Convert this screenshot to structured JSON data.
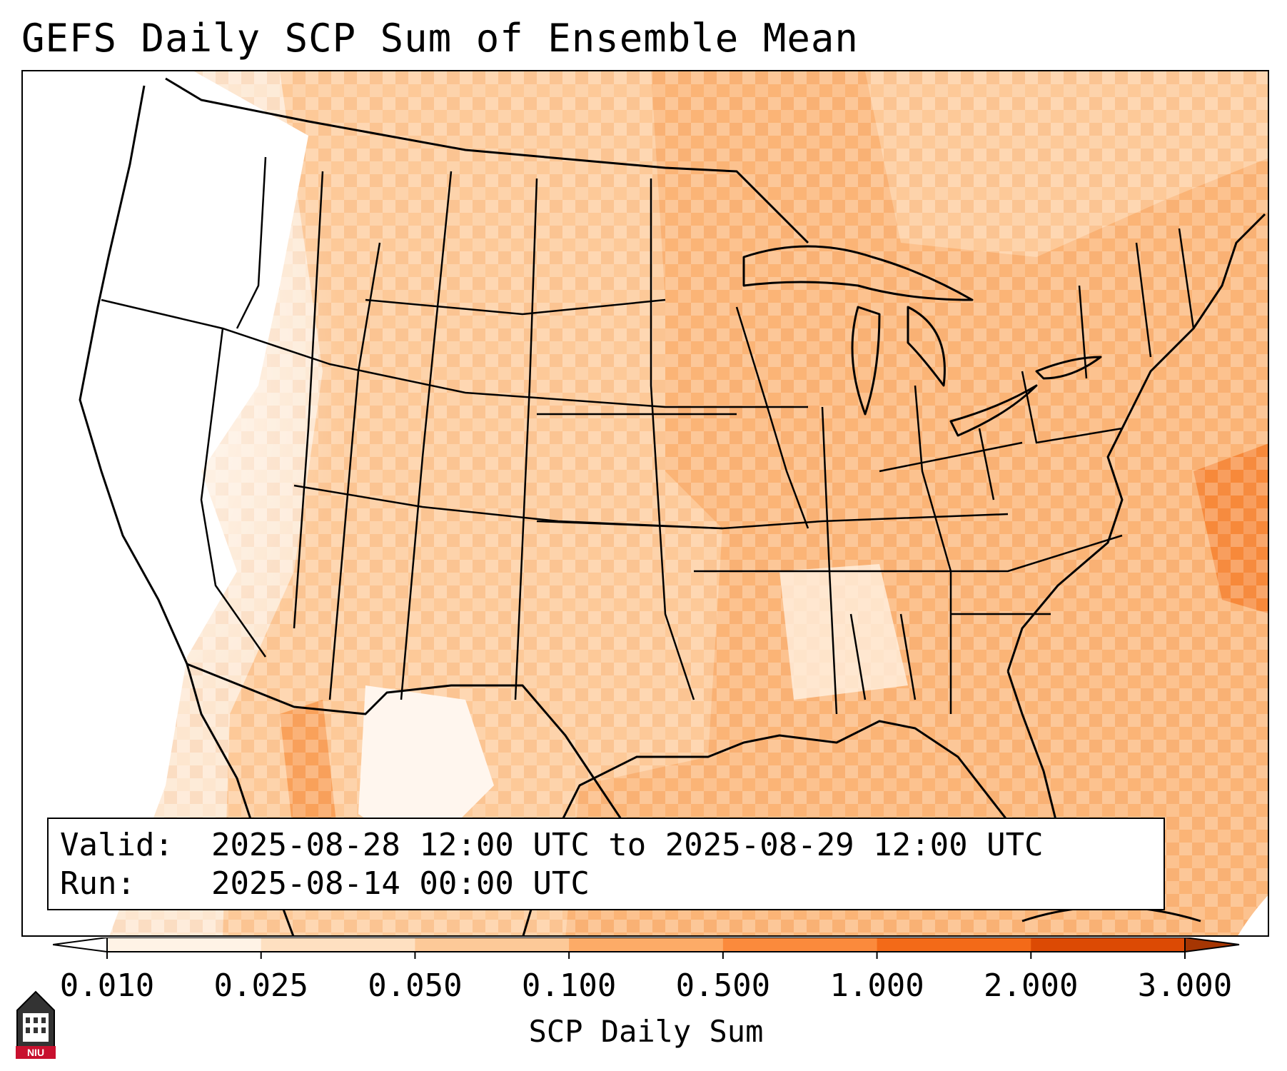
{
  "title": "GEFS Daily SCP Sum of Ensemble Mean",
  "info": {
    "valid_key": "Valid:",
    "valid_value": "2025-08-28 12:00 UTC to 2025-08-29 12:00 UTC",
    "run_key": "Run:",
    "run_value": "2025-08-14 00:00 UTC"
  },
  "colorbar": {
    "label": "SCP Daily Sum",
    "ticks": [
      "0.010",
      "0.025",
      "0.050",
      "0.100",
      "0.500",
      "1.000",
      "2.000",
      "3.000"
    ],
    "colors": [
      "#fff3e6",
      "#fee0c1",
      "#fdc998",
      "#fdab67",
      "#fb8a3c",
      "#f36a18",
      "#dc4a04"
    ],
    "under_color": "#ffffff",
    "over_color": "#a63603"
  },
  "logo": {
    "text": "NIU",
    "icon": "niu-building-logo",
    "primary_color": "#c8102e"
  },
  "map": {
    "projection": "lambert-conformal",
    "region": "CONUS"
  }
}
